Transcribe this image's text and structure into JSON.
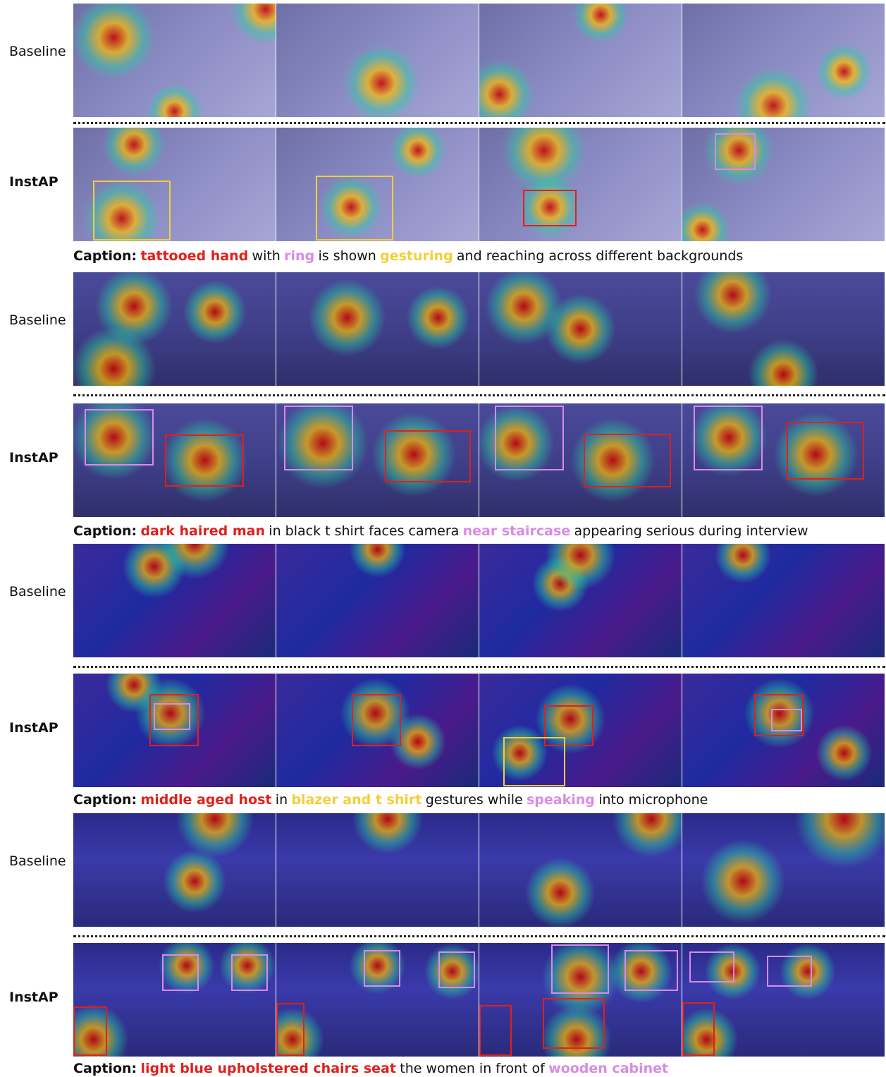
{
  "groups": [
    {
      "baseline_label": "Baseline",
      "instap_label": "InstAP",
      "caption": {
        "prefix": "Caption:",
        "segments": [
          {
            "text": "tattooed hand",
            "color": "#e0201b"
          },
          {
            "text": "with"
          },
          {
            "text": "ring",
            "color": "#d98be6"
          },
          {
            "text": "is shown"
          },
          {
            "text": "gesturing",
            "color": "#f2cf3a"
          },
          {
            "text": "and reaching across different backgrounds"
          }
        ]
      }
    },
    {
      "baseline_label": "Baseline",
      "instap_label": "InstAP",
      "caption": {
        "prefix": "Caption:",
        "segments": [
          {
            "text": "dark haired man",
            "color": "#e0201b"
          },
          {
            "text": "in black t shirt faces camera"
          },
          {
            "text": "near staircase",
            "color": "#d98be6"
          },
          {
            "text": "appearing serious during interview"
          }
        ]
      }
    },
    {
      "baseline_label": "Baseline",
      "instap_label": "InstAP",
      "caption": {
        "prefix": "Caption:",
        "segments": [
          {
            "text": "middle aged host",
            "color": "#e0201b"
          },
          {
            "text": "in"
          },
          {
            "text": "blazer and t shirt",
            "color": "#f2cf3a"
          },
          {
            "text": "gestures while"
          },
          {
            "text": "speaking",
            "color": "#d98be6"
          },
          {
            "text": "into microphone"
          }
        ]
      }
    },
    {
      "baseline_label": "Baseline",
      "instap_label": "InstAP",
      "caption": {
        "prefix": "Caption:",
        "segments": [
          {
            "text": "light blue upholstered chairs seat",
            "color": "#e0201b"
          },
          {
            "text": "the women in front of"
          },
          {
            "text": "wooden cabinet",
            "color": "#d98be6"
          }
        ]
      }
    }
  ]
}
